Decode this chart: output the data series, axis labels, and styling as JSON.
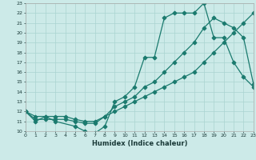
{
  "xlabel": "Humidex (Indice chaleur)",
  "bg_color": "#cceae8",
  "grid_color": "#aad4d0",
  "line_color": "#1a7a6e",
  "xmin": 0,
  "xmax": 23,
  "ymin": 10,
  "ymax": 23,
  "line1_x": [
    0,
    1,
    2,
    3,
    5,
    6,
    7,
    8,
    9,
    10,
    11,
    12,
    13,
    14,
    15,
    16,
    17,
    18,
    19,
    20,
    21,
    22,
    23
  ],
  "line1_y": [
    12,
    11,
    11.5,
    11,
    10.5,
    10,
    9.8,
    10.5,
    13,
    13.5,
    14.5,
    17.5,
    17.5,
    21.5,
    22,
    22,
    22,
    23,
    19.5,
    19.5,
    17,
    15.5,
    14.5
  ],
  "line2_x": [
    0,
    1,
    2,
    3,
    4,
    5,
    6,
    7,
    8,
    9,
    10,
    11,
    12,
    13,
    14,
    15,
    16,
    17,
    18,
    19,
    20,
    21,
    22,
    23
  ],
  "line2_y": [
    12,
    11.2,
    11.2,
    11.2,
    11.2,
    11,
    10.8,
    10.8,
    11.5,
    12.5,
    13,
    13.5,
    14.5,
    15,
    16,
    17,
    18,
    19,
    20.5,
    21.5,
    21,
    20.5,
    19.5,
    14.8
  ],
  "line3_x": [
    0,
    1,
    2,
    3,
    4,
    5,
    6,
    7,
    8,
    9,
    10,
    11,
    12,
    13,
    14,
    15,
    16,
    17,
    18,
    19,
    20,
    21,
    22,
    23
  ],
  "line3_y": [
    12,
    11.5,
    11.5,
    11.5,
    11.5,
    11.2,
    11,
    11,
    11.5,
    12,
    12.5,
    13,
    13.5,
    14,
    14.5,
    15,
    15.5,
    16,
    17,
    18,
    19,
    20,
    21,
    22
  ]
}
